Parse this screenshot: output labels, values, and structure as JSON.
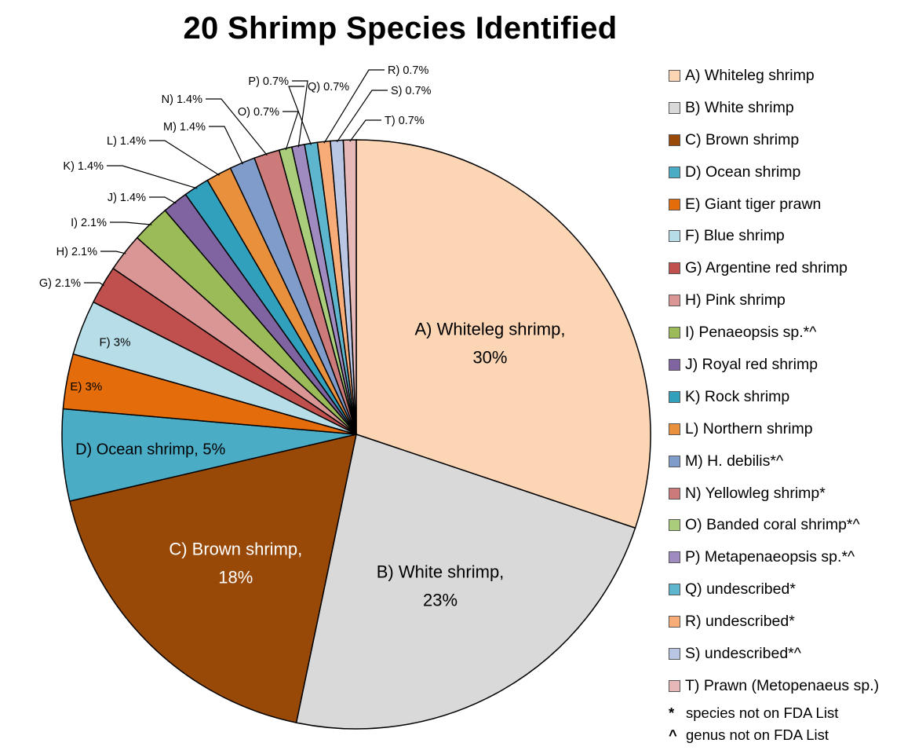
{
  "chart_data": {
    "type": "pie",
    "title": "20 Shrimp Species Identified",
    "slices": [
      {
        "letter": "A",
        "name": "Whiteleg shrimp",
        "legend": "A) Whiteleg shrimp",
        "value": 30,
        "label": "A) Whiteleg shrimp,",
        "label2": "30%",
        "color": "#FCD5B5"
      },
      {
        "letter": "B",
        "name": "White shrimp",
        "legend": "B) White shrimp",
        "value": 23,
        "label": "B) White shrimp,",
        "label2": "23%",
        "color": "#D9D9D9"
      },
      {
        "letter": "C",
        "name": "Brown shrimp",
        "legend": "C) Brown shrimp",
        "value": 18,
        "label": "C) Brown shrimp,",
        "label2": "18%",
        "color": "#984807"
      },
      {
        "letter": "D",
        "name": "Ocean shrimp",
        "legend": "D) Ocean shrimp",
        "value": 5,
        "label": "D) Ocean shrimp, 5%",
        "color": "#4BACC6"
      },
      {
        "letter": "E",
        "name": "Giant tiger prawn",
        "legend": "E) Giant tiger prawn",
        "value": 3,
        "label": "E) 3%",
        "color": "#E46C0A"
      },
      {
        "letter": "F",
        "name": "Blue shrimp",
        "legend": "F) Blue shrimp",
        "value": 3,
        "label": "F) 3%",
        "color": "#B7DEE8"
      },
      {
        "letter": "G",
        "name": "Argentine red shrimp",
        "legend": "G) Argentine red shrimp",
        "value": 2.1,
        "label": "G) 2.1%",
        "color": "#C0504D"
      },
      {
        "letter": "H",
        "name": "Pink shrimp",
        "legend": "H) Pink shrimp",
        "value": 2.1,
        "label": "H) 2.1%",
        "color": "#D99694"
      },
      {
        "letter": "I",
        "name": "Penaeopsis sp.*^",
        "legend": "I) Penaeopsis sp.*^",
        "value": 2.1,
        "label": "I) 2.1%",
        "color": "#9BBB59"
      },
      {
        "letter": "J",
        "name": "Royal red shrimp",
        "legend": "J) Royal red shrimp",
        "value": 1.4,
        "label": "J) 1.4%",
        "color": "#8064A2"
      },
      {
        "letter": "K",
        "name": "Rock shrimp",
        "legend": "K) Rock shrimp",
        "value": 1.4,
        "label": "K) 1.4%",
        "color": "#31A0BC"
      },
      {
        "letter": "L",
        "name": "Northern shrimp",
        "legend": "L) Northern shrimp",
        "value": 1.4,
        "label": "L) 1.4%",
        "color": "#E8903C"
      },
      {
        "letter": "M",
        "name": "H. debilis*^",
        "legend": "M) H. debilis*^",
        "value": 1.4,
        "label": "M) 1.4%",
        "color": "#7F9CCB"
      },
      {
        "letter": "N",
        "name": "Yellowleg shrimp*",
        "legend": "N) Yellowleg shrimp*",
        "value": 1.4,
        "label": "N) 1.4%",
        "color": "#CD7A7A"
      },
      {
        "letter": "O",
        "name": "Banded coral shrimp*^",
        "legend": "O) Banded coral shrimp*^",
        "value": 0.7,
        "label": "O) 0.7%",
        "color": "#A9CD7A"
      },
      {
        "letter": "P",
        "name": "Metapenaeopsis sp.*^",
        "legend": "P) Metapenaeopsis sp.*^",
        "value": 0.7,
        "label": "P) 0.7%",
        "color": "#9F8BC0"
      },
      {
        "letter": "Q",
        "name": "undescribed*",
        "legend": "Q) undescribed*",
        "value": 0.7,
        "label": "Q) 0.7%",
        "color": "#5DB6CE"
      },
      {
        "letter": "R",
        "name": "undescribed*",
        "legend": "R) undescribed*",
        "value": 0.7,
        "label": "R)  0.7%",
        "color": "#F8AC78"
      },
      {
        "letter": "S",
        "name": "undescribed*^",
        "legend": "S) undescribed*^",
        "value": 0.7,
        "label": "S) 0.7%",
        "color": "#B9C7E4"
      },
      {
        "letter": "T",
        "name": "Prawn (Metopenaeus sp.)",
        "legend": "T) Prawn (Metopenaeus sp.)",
        "value": 0.7,
        "label": "T) 0.7%",
        "color": "#E6B9B8"
      }
    ],
    "legend_position": "right",
    "footnotes": [
      {
        "symbol": "*",
        "text": "species not on FDA List"
      },
      {
        "symbol": "^",
        "text": "genus not on FDA  List"
      }
    ]
  }
}
